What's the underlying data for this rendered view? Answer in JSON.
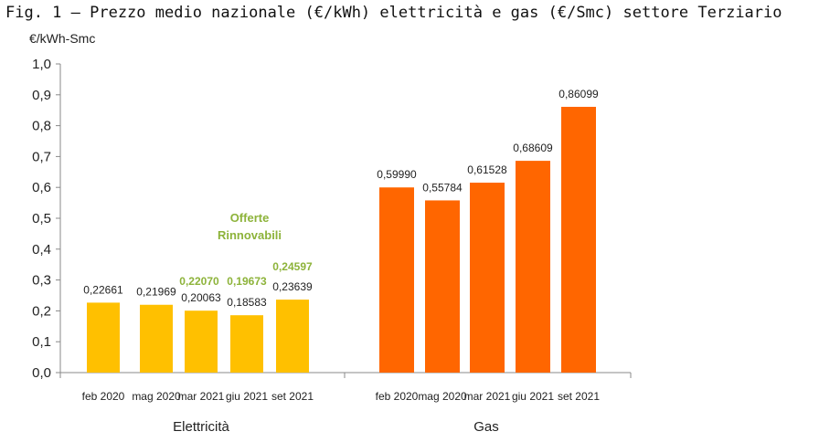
{
  "chart_data": {
    "type": "bar",
    "title": "Fig. 1 – Prezzo medio nazionale (€/kWh) elettricità e gas (€/Smc) settore Terziario",
    "ylabel": "€/kWh-Smc",
    "ylim": [
      0,
      1.0
    ],
    "yticks": [
      "0,0",
      "0,1",
      "0,2",
      "0,3",
      "0,4",
      "0,5",
      "0,6",
      "0,7",
      "0,8",
      "0,9",
      "1,0"
    ],
    "groups": [
      {
        "name": "Elettricità",
        "color": "#FFC000",
        "categories": [
          "feb 2020",
          "mag 2020",
          "mar 2021",
          "giu 2021",
          "set 2021"
        ],
        "values": [
          0.22661,
          0.21969,
          0.20063,
          0.18583,
          0.23639
        ],
        "labels": [
          "0,22661",
          "0,21969",
          "0,20063",
          "0,18583",
          "0,23639"
        ],
        "renewable": {
          "name": "Offerte Rinnovabili",
          "line1": "Offerte",
          "line2": "Rinnovabili",
          "color": "#8DB33A",
          "values": [
            null,
            null,
            0.2207,
            0.19673,
            0.24597
          ],
          "labels": [
            "",
            "",
            "0,22070",
            "0,19673",
            "0,24597"
          ]
        }
      },
      {
        "name": "Gas",
        "color": "#FF6600",
        "categories": [
          "feb 2020",
          "mag 2020",
          "mar 2021",
          "giu 2021",
          "set 2021"
        ],
        "values": [
          0.5999,
          0.55784,
          0.61528,
          0.68609,
          0.86099
        ],
        "labels": [
          "0,59990",
          "0,55784",
          "0,61528",
          "0,68609",
          "0,86099"
        ]
      }
    ]
  }
}
